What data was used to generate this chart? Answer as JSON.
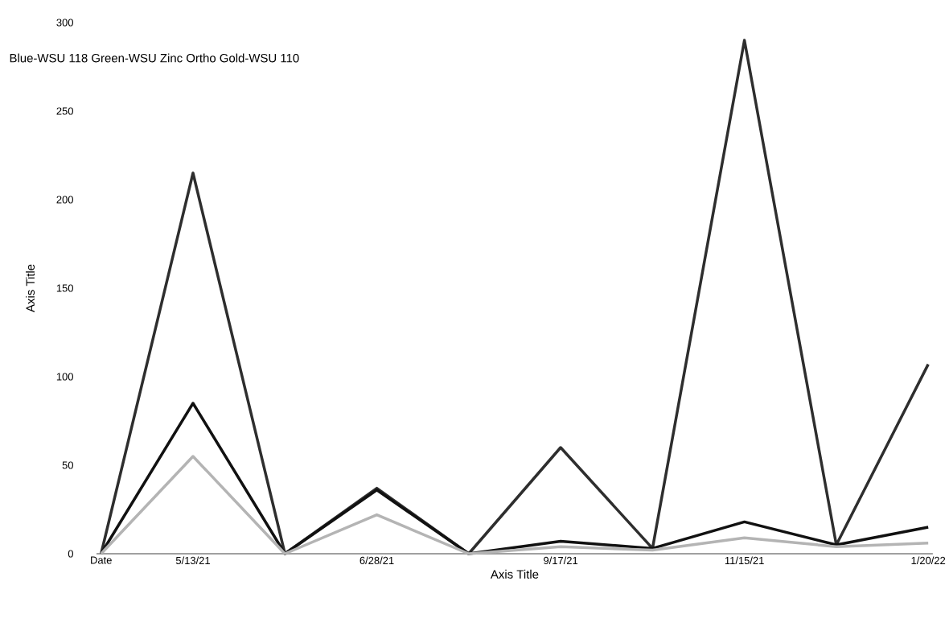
{
  "chart_data": {
    "type": "line",
    "xlabel": "Axis Title",
    "ylabel": "Axis Title",
    "annotations": [
      "Blue-WSU 118    Green-WSU Zinc Ortho    Gold-WSU 110"
    ],
    "categories": [
      "Date",
      "5/13/21",
      null,
      "6/28/21",
      null,
      "9/17/21",
      null,
      "11/15/21",
      null,
      "1/20/22"
    ],
    "series": [
      {
        "color": "#2e2e2e",
        "values": [
          0,
          215,
          0,
          37,
          0,
          60,
          3,
          290,
          5,
          107
        ]
      },
      {
        "color": "#111111",
        "values": [
          0,
          85,
          0,
          36,
          0,
          7,
          3,
          18,
          5,
          15
        ]
      },
      {
        "color": "#b4b4b4",
        "values": [
          0,
          55,
          0,
          22,
          0,
          4,
          2,
          9,
          4,
          6
        ]
      }
    ],
    "ylim": [
      0,
      300
    ],
    "yticks": [
      0,
      50,
      100,
      150,
      200,
      250,
      300
    ],
    "grid": false,
    "marker": "none",
    "line_style": "solid"
  }
}
